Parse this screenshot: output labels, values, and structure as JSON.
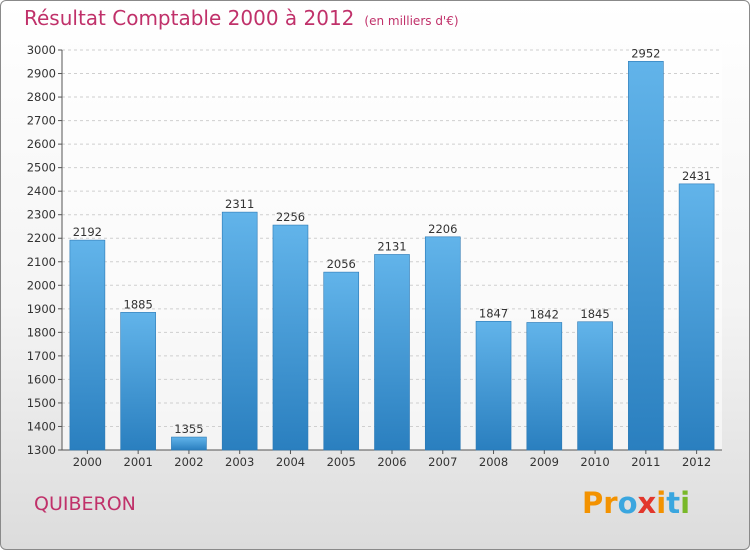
{
  "title": "Résultat Comptable 2000 à 2012",
  "unit_note": "(en milliers d'€)",
  "commune": "QUIBERON",
  "logo": {
    "letters": [
      "P",
      "r",
      "o",
      "x",
      "i",
      "t",
      "i"
    ],
    "colors": [
      "#f39200",
      "#f39200",
      "#3aa6df",
      "#e2362b",
      "#f39200",
      "#3aa6df",
      "#79b829"
    ]
  },
  "colors": {
    "bar_light": "#62b4ea",
    "bar_dark": "#2a7fbf",
    "title": "#c0316a"
  },
  "chart_data": {
    "type": "bar",
    "title": "Résultat Comptable 2000 à 2012",
    "categories": [
      "2000",
      "2001",
      "2002",
      "2003",
      "2004",
      "2005",
      "2006",
      "2007",
      "2008",
      "2009",
      "2010",
      "2011",
      "2012"
    ],
    "values": [
      2192,
      1885,
      1355,
      2311,
      2256,
      2056,
      2131,
      2206,
      1847,
      1842,
      1845,
      2952,
      2431
    ],
    "ylim": [
      1300,
      3000
    ],
    "yticks": [
      1300,
      1400,
      1500,
      1600,
      1700,
      1800,
      1900,
      2000,
      2100,
      2200,
      2300,
      2400,
      2500,
      2600,
      2700,
      2800,
      2900,
      3000
    ],
    "grid": true,
    "xlabel": "",
    "ylabel": ""
  }
}
